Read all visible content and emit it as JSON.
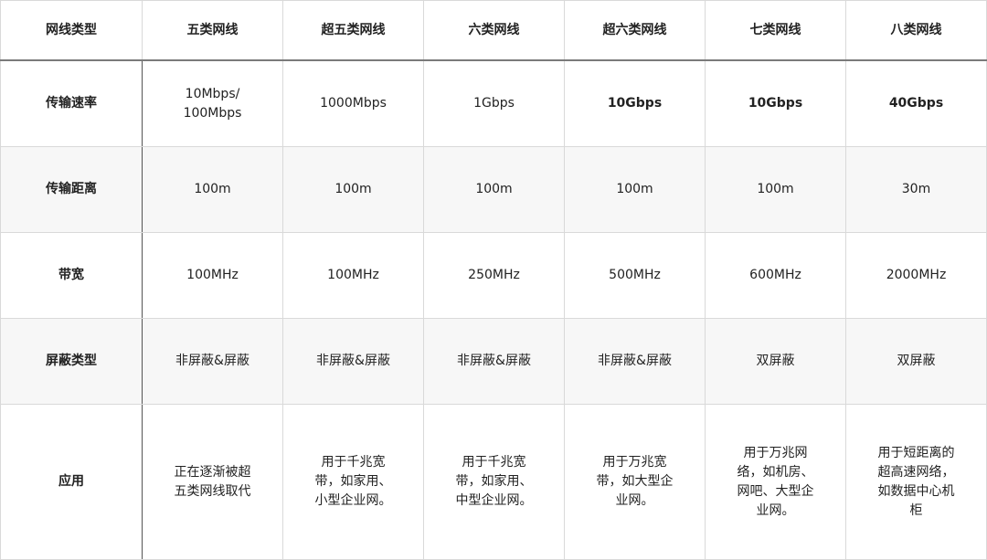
{
  "header": [
    "网线类型",
    "五类网线",
    "超五类网线",
    "六类网线",
    "超六类网线",
    "七类网线",
    "八类网线"
  ],
  "rows": [
    {
      "label": "传输速率",
      "cells": [
        "10Mbps/\n100Mbps",
        "1000Mbps",
        "1Gbps",
        "10Gbps",
        "10Gbps",
        "40Gbps"
      ]
    },
    {
      "label": "传输距离",
      "cells": [
        "100m",
        "100m",
        "100m",
        "100m",
        "100m",
        "30m"
      ]
    },
    {
      "label": "带宽",
      "cells": [
        "100MHz",
        "100MHz",
        "250MHz",
        "500MHz",
        "600MHz",
        "2000MHz"
      ]
    },
    {
      "label": "屏蔽类型",
      "cells": [
        "非屏蔽&屏蔽",
        "非屏蔽&屏蔽",
        "非屏蔽&屏蔽",
        "非屏蔽&屏蔽",
        "双屏蔽",
        "双屏蔽"
      ]
    },
    {
      "label": "应用",
      "cells": [
        "正在逐渐被超\n五类网线取代",
        "用于千兆宽\n带，如家用、\n小型企业网。",
        "用于千兆宽\n带，如家用、\n中型企业网。",
        "用于万兆宽\n带，如大型企\n业网。",
        "用于万兆网\n络，如机房、\n网吧、大型企\n业网。",
        "用于短距离的\n超高速网络，\n如数据中心机\n柜"
      ]
    }
  ]
}
